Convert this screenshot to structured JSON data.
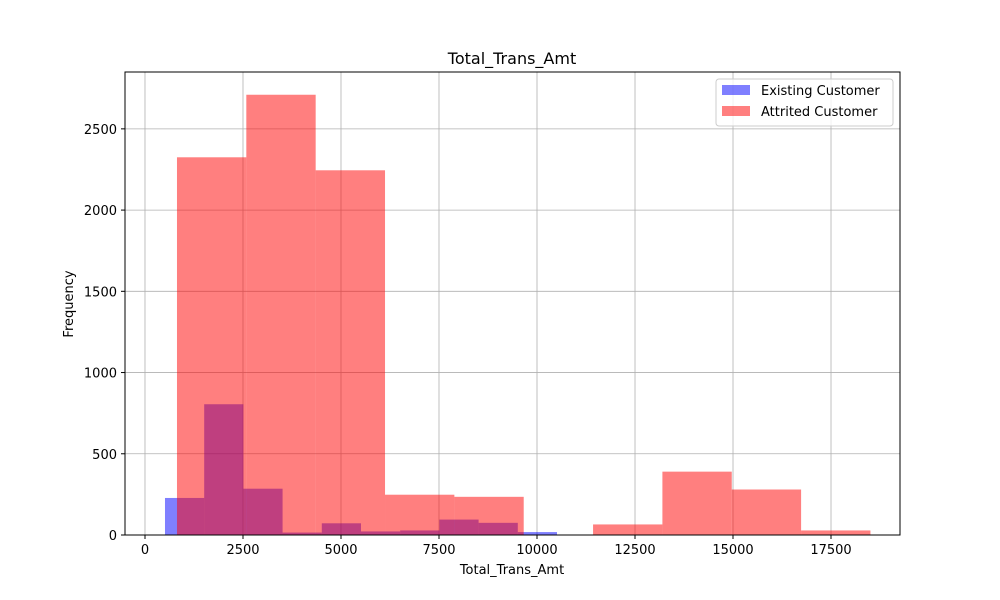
{
  "chart_data": {
    "type": "histogram",
    "title": "Total_Trans_Amt",
    "xlabel": "Total_Trans_Amt",
    "ylabel": "Frequency",
    "xlim": [
      -510,
      19260
    ],
    "ylim": [
      0,
      2850
    ],
    "xticks": [
      0,
      2500,
      5000,
      7500,
      10000,
      12500,
      15000,
      17500
    ],
    "yticks": [
      0,
      500,
      1000,
      1500,
      2000,
      2500
    ],
    "grid": true,
    "legend_position": "top-right",
    "series": [
      {
        "name": "Existing Customer",
        "color": "#0000ff",
        "opacity": 0.5,
        "bins": [
          {
            "x0": 510,
            "x1": 1510,
            "count": 228
          },
          {
            "x0": 1510,
            "x1": 2510,
            "count": 805
          },
          {
            "x0": 2510,
            "x1": 3510,
            "count": 285
          },
          {
            "x0": 3510,
            "x1": 4510,
            "count": 15
          },
          {
            "x0": 4510,
            "x1": 5510,
            "count": 72
          },
          {
            "x0": 5510,
            "x1": 6510,
            "count": 22
          },
          {
            "x0": 6510,
            "x1": 7510,
            "count": 28
          },
          {
            "x0": 7510,
            "x1": 8510,
            "count": 95
          },
          {
            "x0": 8510,
            "x1": 9510,
            "count": 75
          },
          {
            "x0": 9510,
            "x1": 10510,
            "count": 18
          }
        ]
      },
      {
        "name": "Attrited Customer",
        "color": "#ff0000",
        "opacity": 0.5,
        "bins": [
          {
            "x0": 816,
            "x1": 2585,
            "count": 2325
          },
          {
            "x0": 2585,
            "x1": 4354,
            "count": 2710
          },
          {
            "x0": 4354,
            "x1": 6123,
            "count": 2245
          },
          {
            "x0": 6123,
            "x1": 7892,
            "count": 248
          },
          {
            "x0": 7892,
            "x1": 9661,
            "count": 235
          },
          {
            "x0": 9661,
            "x1": 11430,
            "count": 0
          },
          {
            "x0": 11430,
            "x1": 13199,
            "count": 65
          },
          {
            "x0": 13199,
            "x1": 14968,
            "count": 390
          },
          {
            "x0": 14968,
            "x1": 16737,
            "count": 280
          },
          {
            "x0": 16737,
            "x1": 18506,
            "count": 28
          }
        ]
      }
    ]
  }
}
